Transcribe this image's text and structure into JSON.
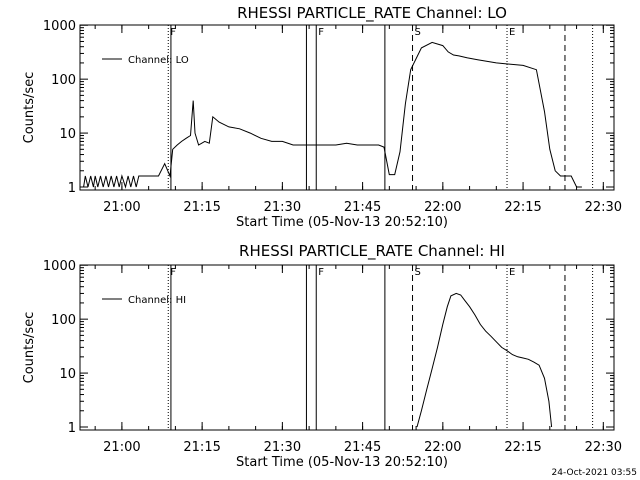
{
  "chart_data": [
    {
      "type": "line",
      "title": "RHESSI PARTICLE_RATE Channel: LO",
      "xlabel": "Start Time (05-Nov-13 20:52:10)",
      "ylabel": "Counts/sec",
      "yscale": "log",
      "ylim": [
        1,
        1000
      ],
      "xlim": [
        "20:52:10",
        "22:32:00"
      ],
      "x_ticks": [
        "21:00",
        "21:15",
        "21:30",
        "21:45",
        "22:00",
        "22:15",
        "22:30"
      ],
      "y_ticks": [
        "1",
        "10",
        "100",
        "1000"
      ],
      "legend": {
        "position": "top-left",
        "entries": [
          "Channel: LO"
        ]
      },
      "series": [
        {
          "name": "Channel: LO",
          "x": [
            "20:52:50",
            "20:53:10",
            "20:53:40",
            "20:54:10",
            "20:54:40",
            "20:55:00",
            "20:55:30",
            "20:56:00",
            "20:56:30",
            "20:57:00",
            "20:57:30",
            "20:58:00",
            "20:58:30",
            "20:59:00",
            "20:59:30",
            "21:00:00",
            "21:00:40",
            "21:01:10",
            "21:01:40",
            "21:02:10",
            "21:02:40",
            "21:03:10",
            "21:04:00",
            "21:04:40",
            "21:05:30",
            "21:06:10",
            "21:06:50",
            "21:08:00",
            "21:09:00",
            "21:09:30",
            "21:10:20",
            "21:11:10",
            "21:12:00",
            "21:12:50",
            "21:13:20",
            "21:13:40",
            "21:14:20",
            "21:15:30",
            "21:16:20",
            "21:17:00",
            "21:18:10",
            "21:20:00",
            "21:22:00",
            "21:24:00",
            "21:26:00",
            "21:28:00",
            "21:30:00",
            "21:32:00",
            "21:34:00",
            "21:36:00",
            "21:38:00",
            "21:40:00",
            "21:42:00",
            "21:44:00",
            "21:46:00",
            "21:47:00",
            "21:48:00",
            "21:49:00",
            "21:50:00",
            "21:51:00",
            "21:52:00",
            "21:53:00",
            "21:54:00",
            "21:56:00",
            "21:58:00",
            "22:00:00",
            "22:01:00",
            "22:02:00",
            "22:03:00",
            "22:04:30",
            "22:06:30",
            "22:10:00",
            "22:15:00",
            "22:17:30",
            "22:19:00",
            "22:20:00",
            "22:21:00",
            "22:22:00",
            "22:23:00",
            "22:24:00",
            "22:25:00",
            "22:26:00"
          ],
          "y": [
            1,
            1.6,
            1,
            1.6,
            1,
            1.6,
            1,
            1.6,
            1,
            1.6,
            1,
            1.6,
            1,
            1.6,
            1,
            1.6,
            1,
            1.6,
            1,
            1.6,
            1,
            1.6,
            1.6,
            1.6,
            1.6,
            1.6,
            1.6,
            2.7,
            1.6,
            5,
            6,
            7,
            8,
            9,
            40,
            10,
            6,
            7,
            6.5,
            20,
            16,
            13,
            12,
            10,
            8,
            7,
            7,
            6,
            6,
            6,
            6,
            6,
            6.5,
            6,
            6,
            6,
            6,
            5.5,
            1.7,
            1.7,
            4.5,
            35,
            150,
            380,
            480,
            420,
            320,
            280,
            270,
            250,
            230,
            200,
            180,
            150,
            25,
            5,
            2,
            1.6,
            1.6,
            1.6,
            1,
            1
          ]
        }
      ],
      "markers": [
        {
          "label": "F",
          "time": "21:08:40",
          "style": "dotted"
        },
        {
          "time": "21:09:10",
          "style": "solid"
        },
        {
          "time": "21:34:30",
          "style": "solid"
        },
        {
          "label": "F",
          "time": "21:36:20",
          "style": "solid"
        },
        {
          "time": "21:49:10",
          "style": "solid"
        },
        {
          "label": "S",
          "time": "21:54:20",
          "style": "dashed"
        },
        {
          "label": "E",
          "time": "22:12:00",
          "style": "dotted"
        },
        {
          "time": "22:22:50",
          "style": "dashed"
        },
        {
          "time": "22:28:00",
          "style": "dotted"
        }
      ]
    },
    {
      "type": "line",
      "title": "RHESSI PARTICLE_RATE Channel: HI",
      "xlabel": "Start Time (05-Nov-13 20:52:10)",
      "ylabel": "Counts/sec",
      "yscale": "log",
      "ylim": [
        1,
        1000
      ],
      "xlim": [
        "20:52:10",
        "22:32:00"
      ],
      "x_ticks": [
        "21:00",
        "21:15",
        "21:30",
        "21:45",
        "22:00",
        "22:15",
        "22:30"
      ],
      "y_ticks": [
        "1",
        "10",
        "100",
        "1000"
      ],
      "legend": {
        "position": "top-left",
        "entries": [
          "Channel: HI"
        ]
      },
      "series": [
        {
          "name": "Channel: HI",
          "x": [
            "21:55:10",
            "21:56:00",
            "21:57:00",
            "21:58:00",
            "21:59:00",
            "22:00:00",
            "22:00:50",
            "22:01:30",
            "22:02:30",
            "22:03:20",
            "22:04:00",
            "22:05:00",
            "22:06:00",
            "22:07:00",
            "22:08:00",
            "22:09:00",
            "22:10:00",
            "22:11:00",
            "22:12:00",
            "22:13:00",
            "22:14:00",
            "22:15:00",
            "22:16:00",
            "22:17:00",
            "22:18:00",
            "22:19:00",
            "22:19:50",
            "22:20:20"
          ],
          "y": [
            1,
            2,
            5,
            12,
            30,
            80,
            170,
            270,
            300,
            280,
            230,
            170,
            120,
            80,
            60,
            48,
            38,
            30,
            26,
            22,
            20,
            19,
            18,
            16,
            14,
            8,
            3,
            1
          ]
        }
      ],
      "markers": [
        {
          "label": "F",
          "time": "21:08:40",
          "style": "dotted"
        },
        {
          "time": "21:09:10",
          "style": "solid"
        },
        {
          "time": "21:34:30",
          "style": "solid"
        },
        {
          "label": "F",
          "time": "21:36:20",
          "style": "solid"
        },
        {
          "time": "21:49:10",
          "style": "solid"
        },
        {
          "label": "S",
          "time": "21:54:20",
          "style": "dashed"
        },
        {
          "label": "E",
          "time": "22:12:00",
          "style": "dotted"
        },
        {
          "time": "22:22:50",
          "style": "dashed"
        },
        {
          "time": "22:28:00",
          "style": "dotted"
        }
      ]
    }
  ],
  "footer": {
    "timestamp": "24-Oct-2021 03:55"
  }
}
